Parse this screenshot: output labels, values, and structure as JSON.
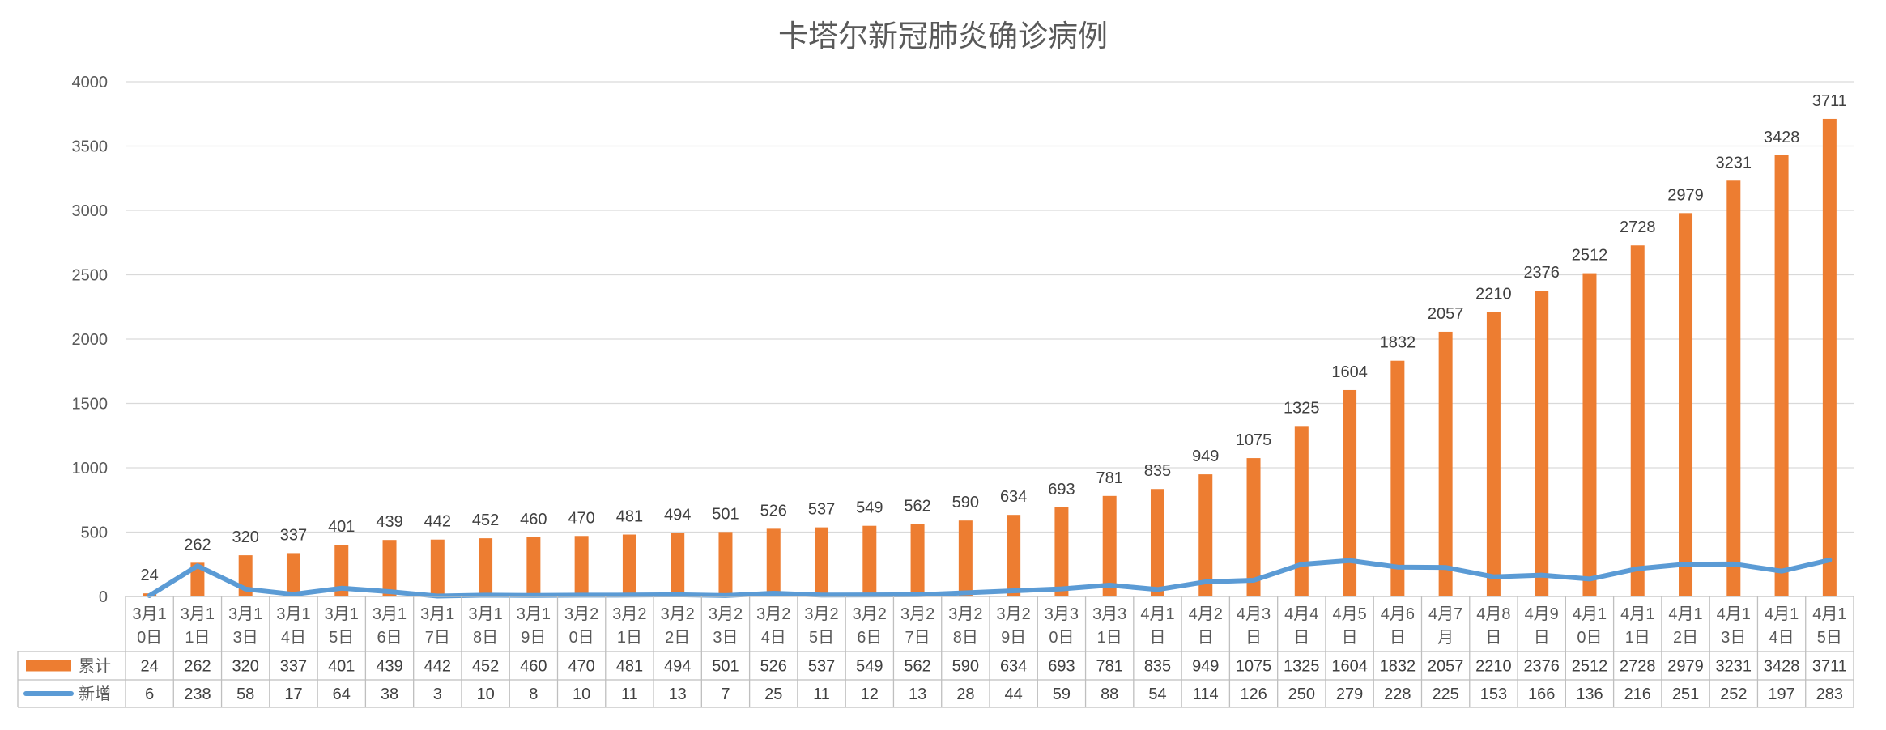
{
  "chart_data": {
    "type": "bar",
    "title": "卡塔尔新冠肺炎确诊病例",
    "categories": [
      "3月10日",
      "3月11日",
      "3月13日",
      "3月14日",
      "3月15日",
      "3月16日",
      "3月17日",
      "3月18日",
      "3月19日",
      "3月20日",
      "3月21日",
      "3月22日",
      "3月23日",
      "3月24日",
      "3月25日",
      "3月26日",
      "3月27日",
      "3月28日",
      "3月29日",
      "3月30日",
      "3月31日",
      "4月1日",
      "4月2日",
      "4月3日",
      "4月4日",
      "4月5日",
      "4月6日",
      "4月7月",
      "4月8日",
      "4月9日",
      "4月10日",
      "4月11日",
      "4月12日",
      "4月13日",
      "4月14日",
      "4月15日"
    ],
    "category_lines": [
      [
        "3月1",
        "0日"
      ],
      [
        "3月1",
        "1日"
      ],
      [
        "3月1",
        "3日"
      ],
      [
        "3月1",
        "4日"
      ],
      [
        "3月1",
        "5日"
      ],
      [
        "3月1",
        "6日"
      ],
      [
        "3月1",
        "7日"
      ],
      [
        "3月1",
        "8日"
      ],
      [
        "3月1",
        "9日"
      ],
      [
        "3月2",
        "0日"
      ],
      [
        "3月2",
        "1日"
      ],
      [
        "3月2",
        "2日"
      ],
      [
        "3月2",
        "3日"
      ],
      [
        "3月2",
        "4日"
      ],
      [
        "3月2",
        "5日"
      ],
      [
        "3月2",
        "6日"
      ],
      [
        "3月2",
        "7日"
      ],
      [
        "3月2",
        "8日"
      ],
      [
        "3月2",
        "9日"
      ],
      [
        "3月3",
        "0日"
      ],
      [
        "3月3",
        "1日"
      ],
      [
        "4月1",
        "日"
      ],
      [
        "4月2",
        "日"
      ],
      [
        "4月3",
        "日"
      ],
      [
        "4月4",
        "日"
      ],
      [
        "4月5",
        "日"
      ],
      [
        "4月6",
        "日"
      ],
      [
        "4月7",
        "月"
      ],
      [
        "4月8",
        "日"
      ],
      [
        "4月9",
        "日"
      ],
      [
        "4月1",
        "0日"
      ],
      [
        "4月1",
        "1日"
      ],
      [
        "4月1",
        "2日"
      ],
      [
        "4月1",
        "3日"
      ],
      [
        "4月1",
        "4日"
      ],
      [
        "4月1",
        "5日"
      ]
    ],
    "series": [
      {
        "name": "累计",
        "type": "bar",
        "color": "#ed7d31",
        "values": [
          24,
          262,
          320,
          337,
          401,
          439,
          442,
          452,
          460,
          470,
          481,
          494,
          501,
          526,
          537,
          549,
          562,
          590,
          634,
          693,
          781,
          835,
          949,
          1075,
          1325,
          1604,
          1832,
          2057,
          2210,
          2376,
          2512,
          2728,
          2979,
          3231,
          3428,
          3711
        ]
      },
      {
        "name": "新增",
        "type": "line",
        "color": "#5b9bd5",
        "values": [
          6,
          238,
          58,
          17,
          64,
          38,
          3,
          10,
          8,
          10,
          11,
          13,
          7,
          25,
          11,
          12,
          13,
          28,
          44,
          59,
          88,
          54,
          114,
          126,
          250,
          279,
          228,
          225,
          153,
          166,
          136,
          216,
          251,
          252,
          197,
          283
        ]
      }
    ],
    "ylim": [
      0,
      4000
    ],
    "yticks": [
      0,
      500,
      1000,
      1500,
      2000,
      2500,
      3000,
      3500,
      4000
    ],
    "grid": true,
    "legend": "data-table-below",
    "data_labels": "bar-series"
  }
}
